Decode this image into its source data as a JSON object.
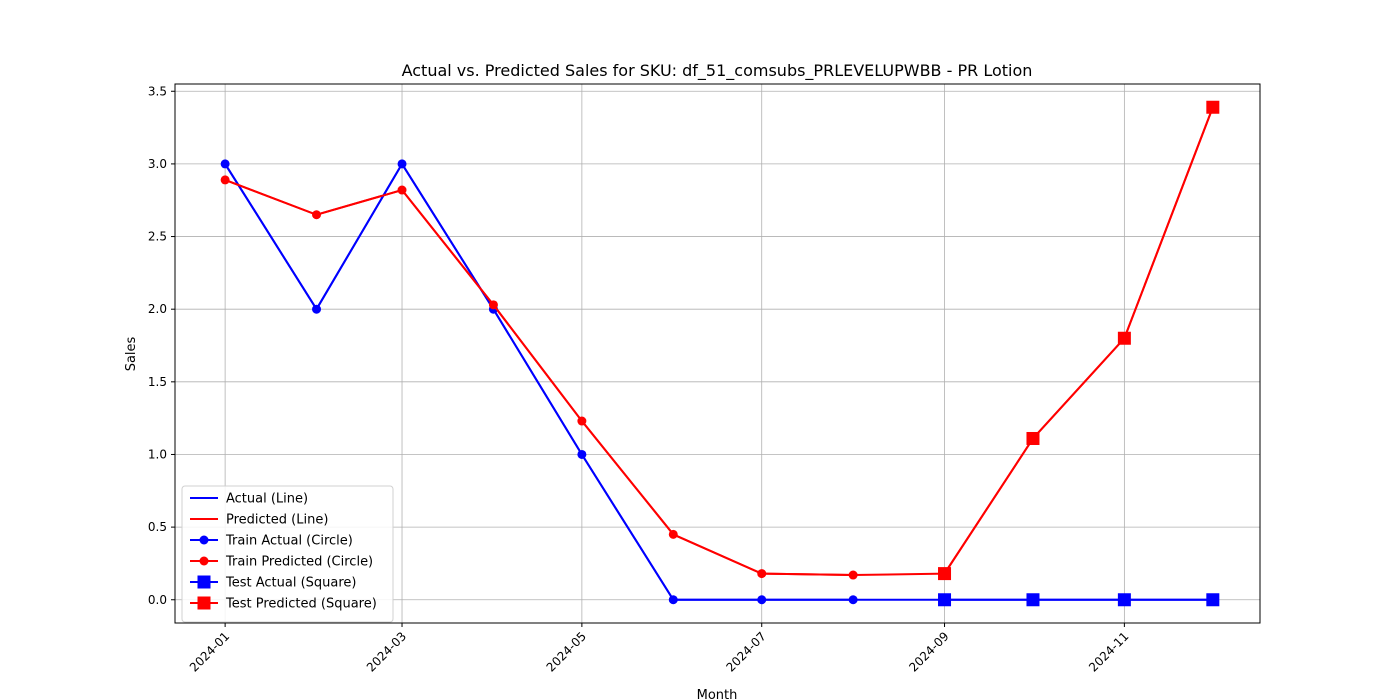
{
  "chart_data": {
    "type": "line",
    "title": "Actual vs. Predicted Sales for SKU: df_51_comsubs_PRLEVELUPWBB - PR Lotion",
    "xlabel": "Month",
    "ylabel": "Sales",
    "ylim": [
      -0.16,
      3.55
    ],
    "xlim": [
      "2023-12-15",
      "2024-12-17"
    ],
    "x_ticks": [
      "2024-01",
      "2024-03",
      "2024-05",
      "2024-07",
      "2024-09",
      "2024-11"
    ],
    "y_ticks": [
      "0.0",
      "0.5",
      "1.0",
      "1.5",
      "2.0",
      "2.5",
      "3.0",
      "3.5"
    ],
    "grid": true,
    "legend_position": "lower-left",
    "x": [
      "2024-01",
      "2024-02",
      "2024-03",
      "2024-04",
      "2024-05",
      "2024-06",
      "2024-07",
      "2024-08",
      "2024-09",
      "2024-10",
      "2024-11",
      "2024-12"
    ],
    "series": [
      {
        "name": "Actual (Line)",
        "color": "#0000ff",
        "marker": "none",
        "x": [
          "2024-01",
          "2024-02",
          "2024-03",
          "2024-04",
          "2024-05",
          "2024-06",
          "2024-07",
          "2024-08",
          "2024-09",
          "2024-10",
          "2024-11",
          "2024-12"
        ],
        "values": [
          3.0,
          2.0,
          3.0,
          2.0,
          1.0,
          0.0,
          0.0,
          0.0,
          0.0,
          0.0,
          0.0,
          0.0
        ]
      },
      {
        "name": "Predicted (Line)",
        "color": "#ff0000",
        "marker": "none",
        "x": [
          "2024-01",
          "2024-02",
          "2024-03",
          "2024-04",
          "2024-05",
          "2024-06",
          "2024-07",
          "2024-08",
          "2024-09",
          "2024-10",
          "2024-11",
          "2024-12"
        ],
        "values": [
          2.89,
          2.65,
          2.82,
          2.03,
          1.23,
          0.45,
          0.18,
          0.17,
          0.18,
          1.11,
          1.8,
          3.39
        ]
      },
      {
        "name": "Train Actual (Circle)",
        "color": "#0000ff",
        "marker": "circle",
        "x": [
          "2024-01",
          "2024-02",
          "2024-03",
          "2024-04",
          "2024-05",
          "2024-06",
          "2024-07",
          "2024-08"
        ],
        "values": [
          3.0,
          2.0,
          3.0,
          2.0,
          1.0,
          0.0,
          0.0,
          0.0
        ]
      },
      {
        "name": "Train Predicted (Circle)",
        "color": "#ff0000",
        "marker": "circle",
        "x": [
          "2024-01",
          "2024-02",
          "2024-03",
          "2024-04",
          "2024-05",
          "2024-06",
          "2024-07",
          "2024-08"
        ],
        "values": [
          2.89,
          2.65,
          2.82,
          2.03,
          1.23,
          0.45,
          0.18,
          0.17
        ]
      },
      {
        "name": "Test Actual (Square)",
        "color": "#0000ff",
        "marker": "square",
        "x": [
          "2024-09",
          "2024-10",
          "2024-11",
          "2024-12"
        ],
        "values": [
          0.0,
          0.0,
          0.0,
          0.0
        ]
      },
      {
        "name": "Test Predicted (Square)",
        "color": "#ff0000",
        "marker": "square",
        "x": [
          "2024-09",
          "2024-10",
          "2024-11",
          "2024-12"
        ],
        "values": [
          0.18,
          1.11,
          1.8,
          3.39
        ]
      }
    ]
  }
}
